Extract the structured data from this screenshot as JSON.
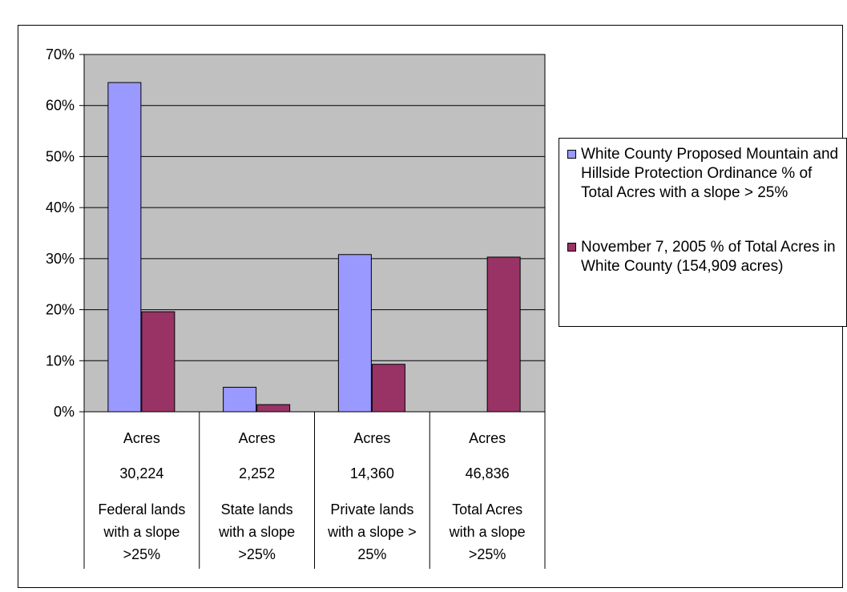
{
  "chart_data": {
    "type": "bar",
    "title": "",
    "xlabel": "",
    "ylabel": "",
    "ylim": [
      0,
      0.7
    ],
    "yticks": [
      0,
      0.1,
      0.2,
      0.3,
      0.4,
      0.5,
      0.6,
      0.7
    ],
    "ytick_labels": [
      "0%",
      "10%",
      "20%",
      "30%",
      "40%",
      "50%",
      "60%",
      "70%"
    ],
    "grid": true,
    "legend_position": "right",
    "categories": [
      {
        "line1": "Acres",
        "line2": "30,224",
        "line3": "Federal lands",
        "line4": "with a slope",
        "line5": ">25%"
      },
      {
        "line1": "Acres",
        "line2": "2,252",
        "line3": "State lands",
        "line4": "with a slope",
        "line5": ">25%"
      },
      {
        "line1": "Acres",
        "line2": "14,360",
        "line3": "Private lands",
        "line4": "with a slope >",
        "line5": "25%"
      },
      {
        "line1": "Acres",
        "line2": "46,836",
        "line3": "Total Acres",
        "line4": "with a slope",
        "line5": ">25%"
      }
    ],
    "series": [
      {
        "name": "White County Proposed Mountain and Hillside Protection Ordinance % of Total Acres with a slope > 25%",
        "color": "#9999ff",
        "values": [
          0.645,
          0.048,
          0.308,
          null
        ]
      },
      {
        "name": "November 7, 2005 % of Total Acres in White County (154,909 acres)",
        "color": "#993366",
        "values": [
          0.196,
          0.014,
          0.093,
          0.303
        ]
      }
    ]
  },
  "colors": {
    "plot_background": "#c0c0c0",
    "gridline": "#000000"
  }
}
